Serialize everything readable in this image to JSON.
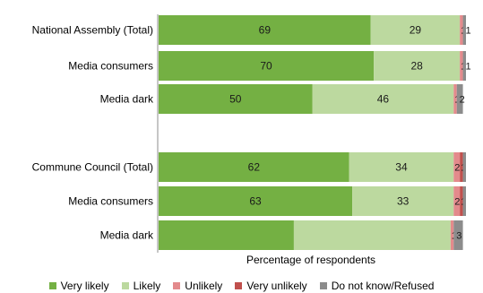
{
  "chart_data": {
    "type": "bar",
    "orientation": "horizontal",
    "stacked": true,
    "xlabel": "Percentage of respondents",
    "xlim": [
      0,
      100
    ],
    "grid": false,
    "legend_position": "bottom",
    "categories": [
      "National Assembly (Total)",
      "Media consumers",
      "Media dark",
      "Commune Council (Total)",
      "Media consumers",
      "Media dark"
    ],
    "series": [
      {
        "name": "Very likely",
        "color": "#74b043",
        "values": [
          69,
          70,
          50,
          62,
          63,
          44
        ],
        "labels": [
          "69",
          "70",
          "50",
          "62",
          "63",
          ""
        ]
      },
      {
        "name": "Likely",
        "color": "#bcd99f",
        "values": [
          29,
          28,
          46,
          34,
          33,
          51
        ],
        "labels": [
          "29",
          "28",
          "46",
          "34",
          "33",
          ""
        ]
      },
      {
        "name": "Unlikely",
        "color": "#e38a8c",
        "values": [
          1,
          1,
          1,
          2,
          2,
          1
        ],
        "labels": [
          "1",
          "1",
          "1",
          "2",
          "2",
          "1"
        ]
      },
      {
        "name": "Very unlikely",
        "color": "#c0504d",
        "values": [
          0,
          0,
          0,
          1,
          1,
          0
        ],
        "labels": [
          "",
          "",
          "",
          "1",
          "1",
          ""
        ]
      },
      {
        "name": "Do not know/Refused",
        "color": "#8c8c8c",
        "values": [
          1,
          1,
          2,
          1,
          1,
          3
        ],
        "labels": [
          "1",
          "1",
          "2",
          "",
          "",
          "3"
        ]
      }
    ]
  }
}
